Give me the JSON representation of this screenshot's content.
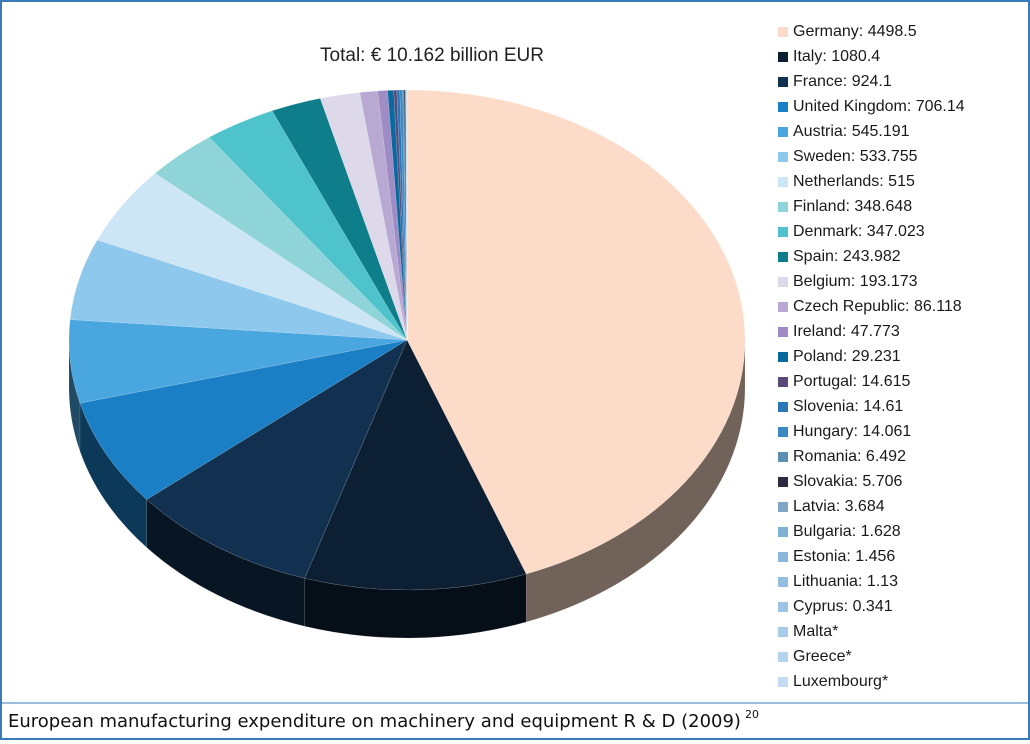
{
  "chart_data": {
    "type": "pie3d",
    "title": "Total: € 10.162 billion EUR",
    "categories": [
      "Germany: 4498.5",
      "Italy: 1080.4",
      "France: 924.1",
      "United Kingdom: 706.14",
      "Austria: 545.191",
      "Sweden: 533.755",
      "Netherlands: 515",
      "Finland: 348.648",
      "Denmark: 347.023",
      "Spain: 243.982",
      "Belgium: 193.173",
      "Czech Republic: 86.118",
      "Ireland: 47.773",
      "Poland: 29.231",
      "Portugal: 14.615",
      "Slovenia: 14.61",
      "Hungary: 14.061",
      "Romania: 6.492",
      "Slovakia: 5.706",
      "Latvia: 3.684",
      "Bulgaria: 1.628",
      "Estonia: 1.456",
      "Lithuania: 1.13",
      "Cyprus: 0.341",
      "Malta*",
      "Greece*",
      "Luxembourg*"
    ],
    "values": [
      4498.5,
      1080.4,
      924.1,
      706.14,
      545.191,
      533.755,
      515,
      348.648,
      347.023,
      243.982,
      193.173,
      86.118,
      47.773,
      29.231,
      14.615,
      14.61,
      14.061,
      6.492,
      5.706,
      3.684,
      1.628,
      1.456,
      1.13,
      0.341,
      null,
      null,
      null
    ],
    "colors": [
      "#fcdcc8",
      "#0d1f33",
      "#12304f",
      "#1a7fc4",
      "#4aa6de",
      "#8ec8ec",
      "#cde6f5",
      "#8fd4d8",
      "#4fc3cc",
      "#0e7f8a",
      "#ddd8ea",
      "#b8a9d2",
      "#a08cc4",
      "#0a6aa0",
      "#5a4a7a",
      "#2a78b8",
      "#3a8ac6",
      "#5c8fb0",
      "#2a2a40",
      "#7fa6c6",
      "#7fb0d6",
      "#8ab8dc",
      "#94bedf",
      "#9cc4e4",
      "#a8ccea",
      "#b4d4ee",
      "#c4dcf2"
    ],
    "legend": "right"
  },
  "caption": {
    "text": "European manufacturing expenditure on machinery and equipment R & D (2009)",
    "note": "20"
  }
}
